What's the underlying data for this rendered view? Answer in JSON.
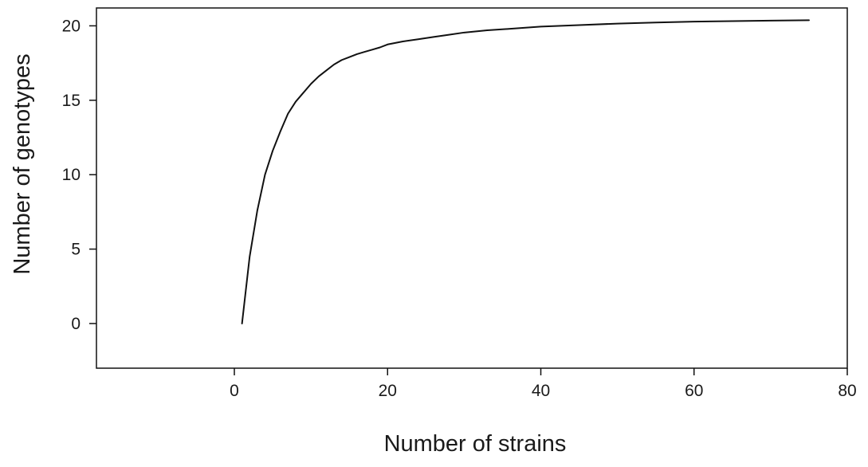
{
  "chart_data": {
    "type": "line",
    "title": "",
    "xlabel": "Number of strains",
    "ylabel": "Number of genotypes",
    "xlim": [
      -18,
      80
    ],
    "ylim": [
      -3,
      21.2
    ],
    "xticks": [
      0,
      20,
      40,
      60,
      80
    ],
    "yticks": [
      0,
      5,
      10,
      15,
      20
    ],
    "xtick_labels": [
      "0",
      "20",
      "40",
      "60",
      "80"
    ],
    "ytick_labels": [
      "0",
      "5",
      "10",
      "15",
      "20"
    ],
    "grid": false,
    "legend": "none",
    "colors": {
      "line": "#111111",
      "axes": "#111111",
      "background": "#ffffff"
    },
    "series": [
      {
        "x": [
          1,
          2,
          3,
          4,
          5,
          6,
          7,
          8,
          9,
          10,
          11,
          12,
          13,
          14,
          15,
          16,
          17,
          18,
          19,
          20,
          22,
          24,
          26,
          28,
          30,
          33,
          36,
          40,
          45,
          50,
          55,
          60,
          65,
          70,
          75
        ],
        "y": [
          0,
          4.5,
          7.6,
          10.0,
          11.6,
          12.9,
          14.1,
          14.9,
          15.5,
          16.1,
          16.6,
          17.0,
          17.4,
          17.7,
          17.9,
          18.1,
          18.25,
          18.4,
          18.55,
          18.75,
          18.95,
          19.1,
          19.25,
          19.4,
          19.55,
          19.7,
          19.8,
          19.95,
          20.05,
          20.15,
          20.22,
          20.28,
          20.32,
          20.35,
          20.38
        ]
      }
    ]
  }
}
